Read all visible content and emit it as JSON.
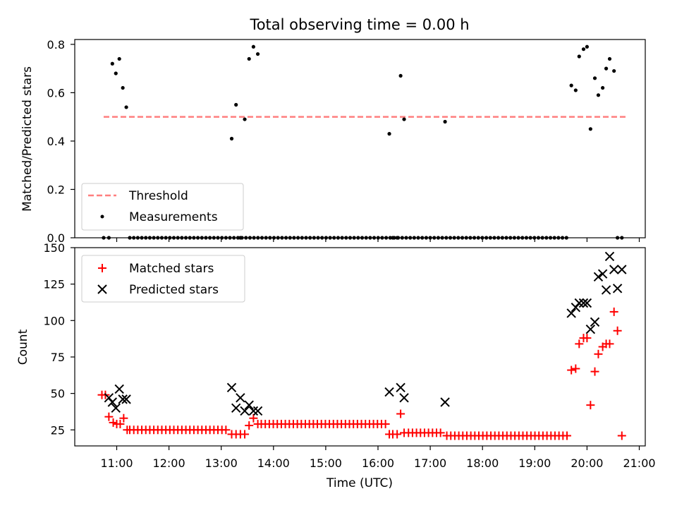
{
  "chart_data": [
    {
      "type": "scatter",
      "title": "Total observing time = 0.00 h",
      "ylabel": "Matched/Predicted stars",
      "xlabel": "",
      "ylim": [
        0,
        0.82
      ],
      "yticks": [
        "0.0",
        "0.2",
        "0.4",
        "0.6",
        "0.8"
      ],
      "legend": {
        "placement": "bottom-left",
        "entries": [
          "Threshold",
          "Measurements"
        ]
      },
      "threshold": {
        "name": "Threshold",
        "value": 0.5,
        "x_start": "10:45",
        "x_end": "20:45",
        "color": "#ff7f7f"
      },
      "series": [
        {
          "name": "Measurements",
          "color": "#000000",
          "x": [
            "10:45",
            "10:51",
            "10:55",
            "10:59",
            "11:03",
            "11:07",
            "11:11",
            "13:12",
            "13:17",
            "13:22",
            "13:27",
            "13:32",
            "13:37",
            "13:42",
            "16:13",
            "16:17",
            "16:22",
            "16:26",
            "16:30",
            "17:17",
            "19:42",
            "19:47",
            "19:51",
            "19:56",
            "20:00",
            "20:04",
            "20:09",
            "20:13",
            "20:18",
            "20:22",
            "20:26",
            "20:31",
            "20:35",
            "20:40"
          ],
          "values": [
            0.0,
            0.0,
            0.72,
            0.68,
            0.74,
            0.62,
            0.54,
            0.41,
            0.55,
            0.0,
            0.49,
            0.74,
            0.79,
            0.76,
            0.43,
            0.0,
            0.0,
            0.67,
            0.49,
            0.48,
            0.63,
            0.61,
            0.75,
            0.78,
            0.79,
            0.45,
            0.66,
            0.59,
            0.62,
            0.7,
            0.74,
            0.69,
            0.0,
            0.0
          ]
        }
      ],
      "zero_run": {
        "from": "11:15",
        "to": "19:38",
        "step_minutes": 4.6,
        "value": 0.0
      }
    },
    {
      "type": "scatter",
      "title": "",
      "ylabel": "Count",
      "xlabel": "Time (UTC)",
      "ylim": [
        14,
        150
      ],
      "yticks": [
        "25",
        "50",
        "75",
        "100",
        "125",
        "150"
      ],
      "xticks": [
        "11:00",
        "12:00",
        "13:00",
        "14:00",
        "15:00",
        "16:00",
        "17:00",
        "18:00",
        "19:00",
        "20:00",
        "21:00"
      ],
      "legend": {
        "placement": "top-left",
        "entries": [
          "Matched stars",
          "Predicted stars"
        ]
      },
      "series": [
        {
          "name": "Matched stars",
          "color": "#ff0000",
          "marker": "plus",
          "x": [
            "10:43",
            "10:47",
            "10:51",
            "10:56",
            "11:00",
            "11:04",
            "11:08",
            "11:12",
            "13:12",
            "13:17",
            "13:22",
            "13:27",
            "13:32",
            "13:37",
            "13:42",
            "16:13",
            "16:17",
            "16:22",
            "16:26",
            "16:30",
            "19:42",
            "19:47",
            "19:51",
            "19:56",
            "20:00",
            "20:04",
            "20:09",
            "20:13",
            "20:18",
            "20:22",
            "20:26",
            "20:31",
            "20:35",
            "20:40"
          ],
          "values": [
            49,
            49,
            34,
            30,
            29,
            29,
            33,
            25,
            22,
            22,
            22,
            22,
            28,
            33,
            29,
            22,
            22,
            22,
            36,
            23,
            66,
            67,
            84,
            88,
            88,
            42,
            65,
            77,
            82,
            84,
            84,
            106,
            93,
            21
          ]
        },
        {
          "name": "Predicted stars",
          "color": "#000000",
          "marker": "x",
          "x": [
            "10:51",
            "10:55",
            "10:59",
            "11:03",
            "11:07",
            "11:11",
            "13:12",
            "13:17",
            "13:22",
            "13:27",
            "13:32",
            "13:37",
            "13:42",
            "16:13",
            "16:26",
            "16:30",
            "17:17",
            "19:42",
            "19:47",
            "19:51",
            "19:56",
            "20:00",
            "20:04",
            "20:09",
            "20:13",
            "20:18",
            "20:22",
            "20:26",
            "20:31",
            "20:35",
            "20:40"
          ],
          "values": [
            47,
            44,
            40,
            53,
            46,
            46,
            54,
            40,
            47,
            38,
            42,
            38,
            38,
            51,
            54,
            47,
            44,
            105,
            109,
            112,
            112,
            112,
            94,
            99,
            130,
            132,
            121,
            144,
            135,
            122,
            135
          ]
        }
      ],
      "runs": [
        {
          "series": "Matched stars",
          "from": "11:15",
          "to": "13:09",
          "step_minutes": 4.6,
          "value": 25
        },
        {
          "series": "Matched stars",
          "from": "13:46",
          "to": "16:09",
          "step_minutes": 4.6,
          "value": 29
        },
        {
          "series": "Matched stars",
          "from": "16:35",
          "to": "17:14",
          "step_minutes": 4.6,
          "value": 23
        },
        {
          "series": "Matched stars",
          "from": "17:19",
          "to": "19:38",
          "step_minutes": 4.6,
          "value": 21
        }
      ]
    }
  ]
}
